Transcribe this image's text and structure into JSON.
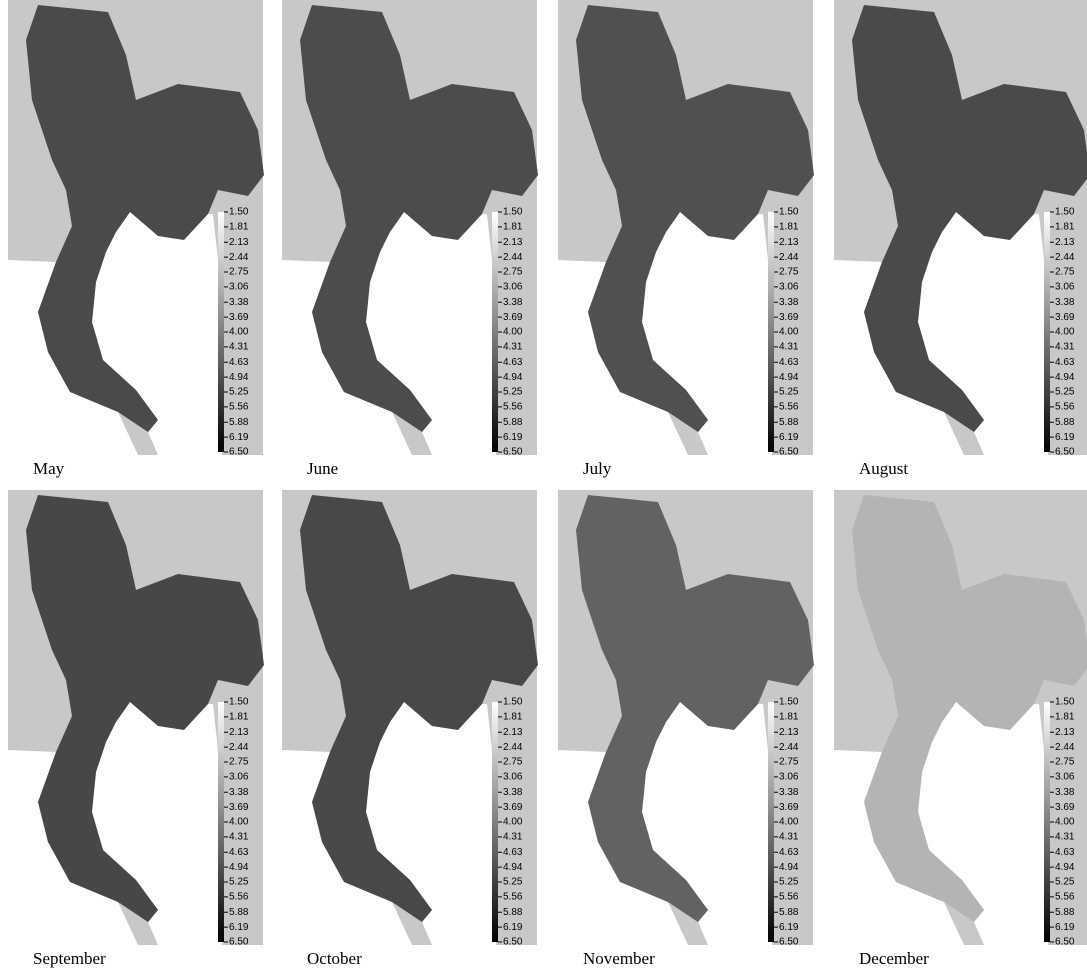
{
  "panels": [
    {
      "label": "May",
      "color": "#4a4a4a"
    },
    {
      "label": "June",
      "color": "#4c4c4c"
    },
    {
      "label": "July",
      "color": "#505050"
    },
    {
      "label": "August",
      "color": "#4a4a4a"
    },
    {
      "label": "September",
      "color": "#474747"
    },
    {
      "label": "October",
      "color": "#484848"
    },
    {
      "label": "November",
      "color": "#626262"
    },
    {
      "label": "December",
      "color": "#b4b4b4"
    }
  ],
  "colorbar": {
    "lim": [
      1.5,
      6.5
    ],
    "top_color": "#ffffff",
    "bottom_color": "#000000",
    "ticks": [
      {
        "value": 1.5,
        "label": "1.50"
      },
      {
        "value": 1.81,
        "label": "1.81"
      },
      {
        "value": 2.13,
        "label": "2.13"
      },
      {
        "value": 2.44,
        "label": "2.44"
      },
      {
        "value": 2.75,
        "label": "2.75"
      },
      {
        "value": 3.06,
        "label": "3.06"
      },
      {
        "value": 3.38,
        "label": "3.38"
      },
      {
        "value": 3.69,
        "label": "3.69"
      },
      {
        "value": 4,
        "label": "4.00"
      },
      {
        "value": 4.31,
        "label": "4.31"
      },
      {
        "value": 4.63,
        "label": "4.63"
      },
      {
        "value": 4.94,
        "label": "4.94"
      },
      {
        "value": 5.25,
        "label": "5.25"
      },
      {
        "value": 5.56,
        "label": "5.56"
      },
      {
        "value": 5.88,
        "label": "5.88"
      },
      {
        "value": 6.19,
        "label": "6.19"
      },
      {
        "value": 6.5,
        "label": "6.50"
      }
    ]
  }
}
